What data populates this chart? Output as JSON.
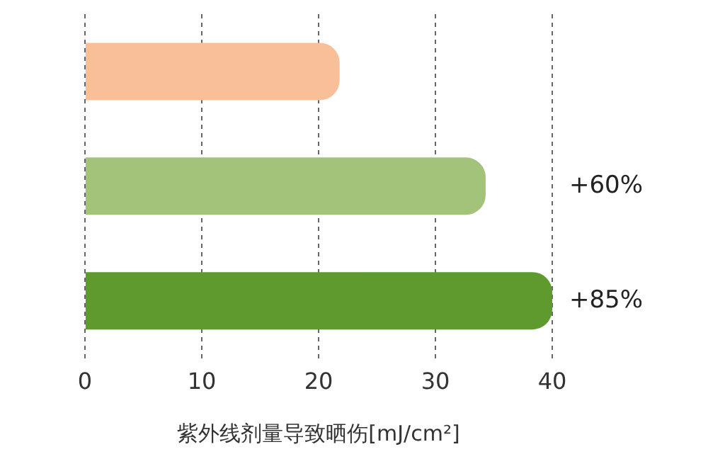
{
  "chart_data": {
    "type": "bar",
    "orientation": "horizontal",
    "categories": [
      null,
      null,
      null
    ],
    "values": [
      21.8,
      34.3,
      40
    ],
    "colors": [
      "#f9bf98",
      "#a3c27a",
      "#5f9a2e"
    ],
    "xlim": [
      0,
      40
    ],
    "xticks": [
      0,
      10,
      20,
      30,
      40
    ],
    "grid": "x",
    "xlabel": "紫外线剂量导致晒伤[mJ/cm²]",
    "annotations": [
      "+60%",
      "+85%"
    ]
  }
}
